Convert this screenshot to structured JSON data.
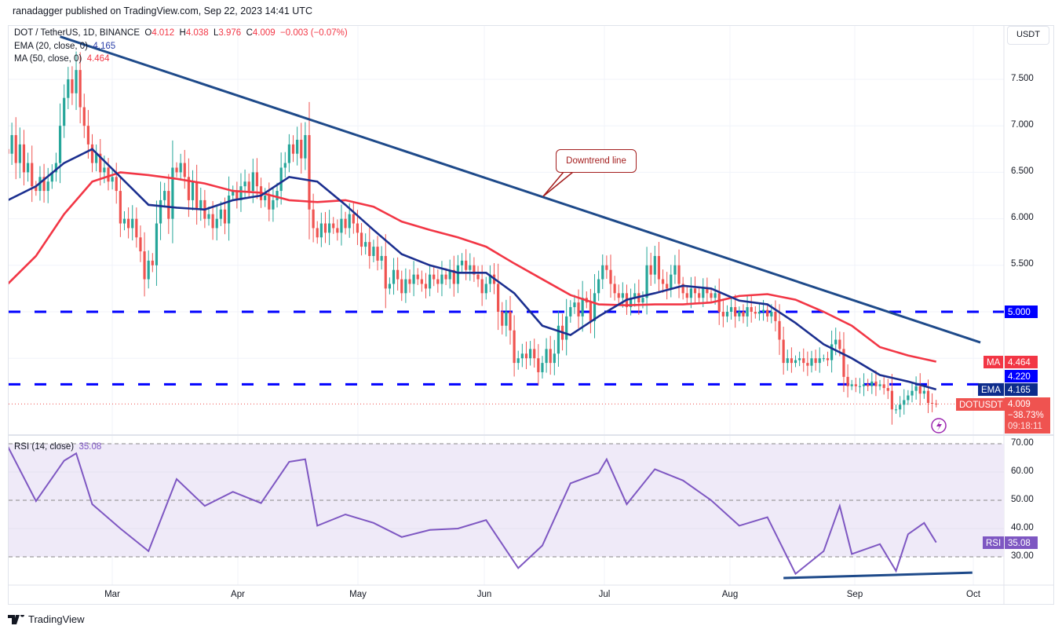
{
  "header": {
    "published": "ranadagger published on TradingView.com, Sep 22, 2023 14:41 UTC"
  },
  "legend": {
    "symbol": "DOT / TetherUS, 1D, BINANCE",
    "o_label": "O",
    "o": "4.012",
    "h_label": "H",
    "h": "4.038",
    "l_label": "L",
    "l": "3.976",
    "c_label": "C",
    "c": "4.009",
    "change": "−0.003 (−0.07%)",
    "ema_label": "EMA (20, close, 0)",
    "ema_value": "4.165",
    "ma_label": "MA (50, close, 0)",
    "ma_value": "4.464",
    "rsi_label": "RSI (14, close)",
    "rsi_value": "35.08"
  },
  "price_axis": {
    "currency_button": "USDT",
    "ticks": [
      "7.500",
      "7.000",
      "6.500",
      "6.000",
      "5.500"
    ],
    "badges": {
      "level_5": "5.000",
      "ma_tag": "MA",
      "ma_value": "4.464",
      "level_422": "4.220",
      "ema_tag": "EMA",
      "ema_value": "4.165",
      "symbol_tag": "DOTUSDT",
      "last_price": "4.009",
      "last_change": "−38.73%",
      "countdown": "09:18:11"
    }
  },
  "rsi_axis": {
    "ticks": [
      "70.00",
      "60.00",
      "50.00",
      "40.00",
      "30.00"
    ],
    "tag": "RSI",
    "value": "35.08"
  },
  "time_axis": {
    "ticks": [
      "Mar",
      "Apr",
      "May",
      "Jun",
      "Jul",
      "Aug",
      "Sep",
      "Oct"
    ]
  },
  "annotation": {
    "text": "Downtrend line"
  },
  "footer": {
    "brand": "TradingView"
  },
  "colors": {
    "up": "#26a69a",
    "down": "#ef5350",
    "ema": "#1b2f8f",
    "ma": "#f23645",
    "trendline": "#1e4a8a",
    "levels": "#0000ff",
    "rsi": "#7e57c2",
    "rsi_band": "#efeaf8",
    "annotation": "#a31d1d"
  },
  "chart_data": [
    {
      "type": "candlestick",
      "interval": "1D",
      "last_date": "2023-09-22",
      "closes": [
        6.7,
        6.9,
        6.6,
        6.8,
        6.5,
        6.6,
        6.35,
        6.3,
        6.45,
        6.3,
        6.4,
        6.5,
        6.6,
        7.0,
        7.3,
        7.5,
        7.35,
        7.6,
        7.2,
        7.0,
        6.8,
        6.6,
        6.7,
        6.5,
        6.55,
        6.4,
        6.45,
        6.3,
        5.95,
        6.0,
        5.9,
        6.0,
        5.8,
        5.65,
        5.35,
        5.55,
        5.5,
        5.95,
        6.2,
        6.3,
        6.0,
        6.55,
        6.5,
        6.6,
        6.45,
        6.2,
        6.4,
        6.1,
        6.2,
        6.0,
        6.05,
        5.9,
        6.0,
        6.1,
        5.95,
        6.25,
        6.3,
        6.2,
        6.35,
        6.4,
        6.3,
        6.5,
        6.35,
        6.2,
        6.25,
        6.1,
        6.2,
        6.3,
        6.55,
        6.6,
        6.8,
        6.7,
        6.85,
        6.65,
        6.9,
        6.1,
        5.9,
        5.8,
        5.95,
        5.85,
        5.95,
        5.9,
        5.85,
        6.0,
        5.9,
        6.05,
        5.95,
        5.85,
        5.7,
        5.75,
        5.6,
        5.7,
        5.55,
        5.6,
        5.25,
        5.3,
        5.45,
        5.35,
        5.2,
        5.35,
        5.3,
        5.4,
        5.35,
        5.3,
        5.25,
        5.4,
        5.35,
        5.3,
        5.4,
        5.35,
        5.45,
        5.3,
        5.5,
        5.55,
        5.45,
        5.5,
        5.4,
        5.35,
        5.2,
        5.3,
        5.4,
        5.3,
        5.0,
        4.85,
        5.0,
        4.8,
        4.45,
        4.5,
        4.55,
        4.5,
        4.6,
        4.5,
        4.35,
        4.45,
        4.6,
        4.45,
        4.55,
        4.85,
        4.7,
        4.95,
        5.05,
        5.1,
        4.95,
        5.15,
        5.1,
        4.9,
        5.2,
        5.35,
        5.5,
        5.45,
        5.3,
        5.2,
        5.15,
        5.2,
        5.05,
        5.15,
        5.2,
        5.1,
        5.15,
        5.5,
        5.4,
        5.6,
        5.35,
        5.3,
        5.25,
        5.4,
        5.5,
        5.3,
        5.2,
        5.15,
        5.25,
        5.2,
        5.15,
        5.25,
        5.2,
        5.15,
        5.2,
        5.0,
        4.95,
        5.0,
        5.05,
        4.95,
        5.0,
        4.95,
        5.05,
        5.0,
        4.98,
        5.0,
        5.02,
        4.95,
        5.0,
        4.9,
        4.7,
        4.45,
        4.5,
        4.45,
        4.48,
        4.5,
        4.45,
        4.42,
        4.5,
        4.45,
        4.5,
        4.5,
        4.48,
        4.65,
        4.7,
        4.6,
        4.3,
        4.2,
        4.22,
        4.2,
        4.2,
        4.22,
        4.2,
        4.25,
        4.2,
        4.22,
        4.18,
        4.15,
        3.95,
        3.95,
        4.0,
        4.05,
        4.1,
        4.15,
        4.2,
        4.12,
        4.15,
        4.02,
        4.012,
        4.009
      ],
      "series": [
        {
          "name": "EMA (20, close, 0)",
          "points": [
            [
              "2023-02-03",
              6.2
            ],
            [
              "2023-02-10",
              6.35
            ],
            [
              "2023-02-17",
              6.6
            ],
            [
              "2023-02-24",
              6.75
            ],
            [
              "2023-03-03",
              6.45
            ],
            [
              "2023-03-10",
              6.15
            ],
            [
              "2023-03-17",
              6.12
            ],
            [
              "2023-03-24",
              6.1
            ],
            [
              "2023-03-31",
              6.2
            ],
            [
              "2023-04-07",
              6.25
            ],
            [
              "2023-04-14",
              6.45
            ],
            [
              "2023-04-21",
              6.4
            ],
            [
              "2023-04-28",
              6.15
            ],
            [
              "2023-05-05",
              5.88
            ],
            [
              "2023-05-12",
              5.62
            ],
            [
              "2023-05-19",
              5.5
            ],
            [
              "2023-05-26",
              5.42
            ],
            [
              "2023-06-02",
              5.42
            ],
            [
              "2023-06-09",
              5.2
            ],
            [
              "2023-06-16",
              4.85
            ],
            [
              "2023-06-23",
              4.75
            ],
            [
              "2023-06-30",
              4.95
            ],
            [
              "2023-07-07",
              5.13
            ],
            [
              "2023-07-14",
              5.2
            ],
            [
              "2023-07-21",
              5.28
            ],
            [
              "2023-07-28",
              5.25
            ],
            [
              "2023-08-04",
              5.12
            ],
            [
              "2023-08-11",
              5.08
            ],
            [
              "2023-08-18",
              4.88
            ],
            [
              "2023-08-25",
              4.65
            ],
            [
              "2023-09-01",
              4.5
            ],
            [
              "2023-09-08",
              4.32
            ],
            [
              "2023-09-15",
              4.25
            ],
            [
              "2023-09-22",
              4.165
            ]
          ]
        },
        {
          "name": "MA (50, close, 0)",
          "points": [
            [
              "2023-02-03",
              5.3
            ],
            [
              "2023-02-10",
              5.6
            ],
            [
              "2023-02-17",
              6.05
            ],
            [
              "2023-02-24",
              6.4
            ],
            [
              "2023-03-03",
              6.5
            ],
            [
              "2023-03-10",
              6.47
            ],
            [
              "2023-03-17",
              6.43
            ],
            [
              "2023-03-24",
              6.38
            ],
            [
              "2023-03-31",
              6.3
            ],
            [
              "2023-04-07",
              6.28
            ],
            [
              "2023-04-14",
              6.2
            ],
            [
              "2023-04-21",
              6.18
            ],
            [
              "2023-04-28",
              6.2
            ],
            [
              "2023-05-05",
              6.13
            ],
            [
              "2023-05-12",
              5.97
            ],
            [
              "2023-05-19",
              5.88
            ],
            [
              "2023-05-26",
              5.8
            ],
            [
              "2023-06-02",
              5.7
            ],
            [
              "2023-06-09",
              5.52
            ],
            [
              "2023-06-16",
              5.35
            ],
            [
              "2023-06-23",
              5.18
            ],
            [
              "2023-06-30",
              5.08
            ],
            [
              "2023-07-07",
              5.07
            ],
            [
              "2023-07-14",
              5.08
            ],
            [
              "2023-07-21",
              5.08
            ],
            [
              "2023-07-28",
              5.1
            ],
            [
              "2023-08-04",
              5.17
            ],
            [
              "2023-08-11",
              5.19
            ],
            [
              "2023-08-18",
              5.13
            ],
            [
              "2023-08-25",
              5.0
            ],
            [
              "2023-09-01",
              4.85
            ],
            [
              "2023-09-08",
              4.62
            ],
            [
              "2023-09-15",
              4.53
            ],
            [
              "2023-09-22",
              4.464
            ]
          ]
        }
      ],
      "horizontal_levels": [
        5.0,
        4.22
      ],
      "trendline": {
        "label": "Downtrend line",
        "start": [
          "2023-02-16",
          7.96
        ],
        "end": [
          "2023-10-03",
          4.67
        ]
      },
      "y_ticks": [
        7.5,
        7.0,
        6.5,
        6.0,
        5.5
      ],
      "grid": true
    },
    {
      "type": "line",
      "name": "RSI (14, close)",
      "ylim": [
        30,
        70
      ],
      "y_ticks": [
        70,
        60,
        50,
        40,
        30
      ],
      "bands": [
        30,
        50,
        70
      ],
      "points": [
        [
          "2023-02-03",
          69
        ],
        [
          "2023-02-10",
          49.7
        ],
        [
          "2023-02-17",
          64
        ],
        [
          "2023-02-20",
          66.6
        ],
        [
          "2023-02-24",
          48.6
        ],
        [
          "2023-03-03",
          40
        ],
        [
          "2023-03-10",
          32
        ],
        [
          "2023-03-17",
          57.5
        ],
        [
          "2023-03-24",
          48
        ],
        [
          "2023-03-31",
          53
        ],
        [
          "2023-04-07",
          49
        ],
        [
          "2023-04-14",
          63.6
        ],
        [
          "2023-04-18",
          64.5
        ],
        [
          "2023-04-21",
          41
        ],
        [
          "2023-04-28",
          45
        ],
        [
          "2023-05-05",
          42
        ],
        [
          "2023-05-12",
          37
        ],
        [
          "2023-05-19",
          39.5
        ],
        [
          "2023-05-26",
          40
        ],
        [
          "2023-06-02",
          43
        ],
        [
          "2023-06-10",
          26
        ],
        [
          "2023-06-16",
          34
        ],
        [
          "2023-06-23",
          56
        ],
        [
          "2023-06-30",
          59.7
        ],
        [
          "2023-07-02",
          64.5
        ],
        [
          "2023-07-07",
          48.6
        ],
        [
          "2023-07-14",
          61
        ],
        [
          "2023-07-21",
          57
        ],
        [
          "2023-07-28",
          50
        ],
        [
          "2023-08-04",
          41
        ],
        [
          "2023-08-11",
          44
        ],
        [
          "2023-08-18",
          24
        ],
        [
          "2023-08-25",
          32
        ],
        [
          "2023-08-29",
          48
        ],
        [
          "2023-09-01",
          31
        ],
        [
          "2023-09-08",
          34.5
        ],
        [
          "2023-09-12",
          25
        ],
        [
          "2023-09-15",
          38
        ],
        [
          "2023-09-19",
          42
        ],
        [
          "2023-09-22",
          35.08
        ]
      ],
      "trendline": {
        "start": [
          "2023-08-15",
          22.5
        ],
        "end": [
          "2023-10-01",
          24.4
        ]
      },
      "x_ticks": [
        "Mar",
        "Apr",
        "May",
        "Jun",
        "Jul",
        "Aug",
        "Sep",
        "Oct"
      ]
    }
  ]
}
